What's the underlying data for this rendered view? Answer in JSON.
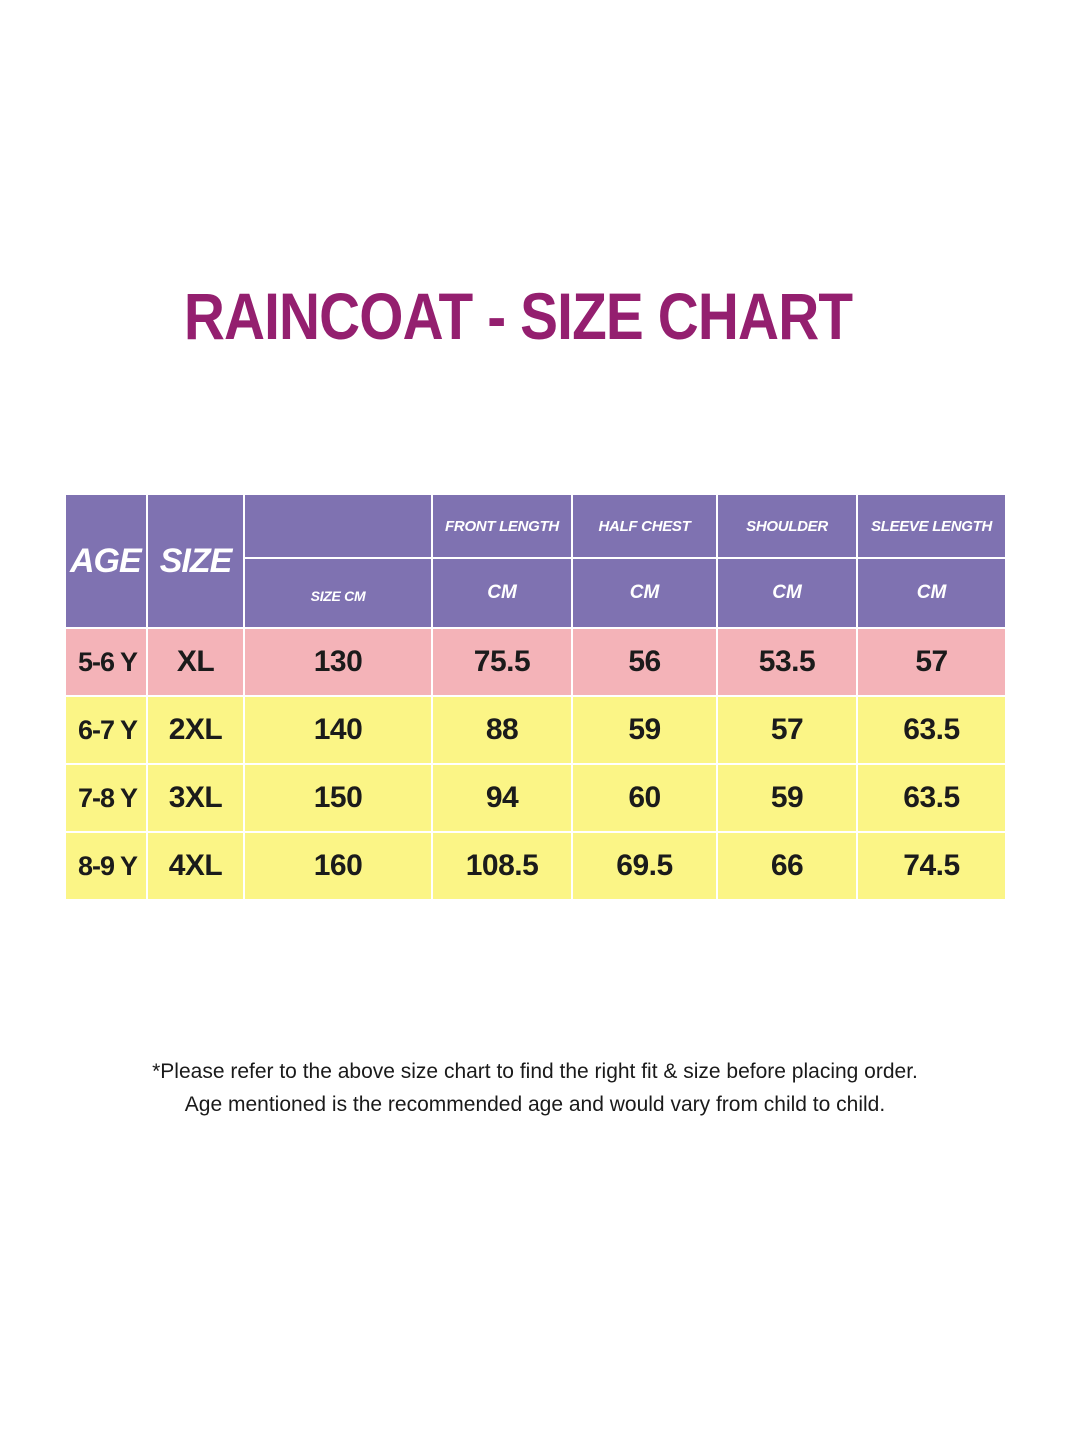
{
  "title": "RAINCOAT - SIZE CHART",
  "colors": {
    "title": "#941f6f",
    "header_bg": "#7f72b1",
    "row_pink": "#f4b3b8",
    "row_yellow": "#fbf586",
    "text": "#1b1b1b"
  },
  "table": {
    "headers": {
      "age": "AGE",
      "size": "SIZE",
      "size_cm": "SIZE CM",
      "front_length": "FRONT LENGTH",
      "half_chest": "HALF CHEST",
      "shoulder": "SHOULDER",
      "sleeve_length": "SLEEVE LENGTH",
      "cm": "CM"
    },
    "rows": [
      [
        "5-6 Y",
        "XL",
        "130",
        "75.5",
        "56",
        "53.5",
        "57"
      ],
      [
        "6-7 Y",
        "2XL",
        "140",
        "88",
        "59",
        "57",
        "63.5"
      ],
      [
        "7-8 Y",
        "3XL",
        "150",
        "94",
        "60",
        "59",
        "63.5"
      ],
      [
        "8-9 Y",
        "4XL",
        "160",
        "108.5",
        "69.5",
        "66",
        "74.5"
      ]
    ]
  },
  "notes": [
    "*Please refer to the above size chart to find the right fit & size before placing order.",
    "Age mentioned is the recommended age and would vary from child to child."
  ]
}
